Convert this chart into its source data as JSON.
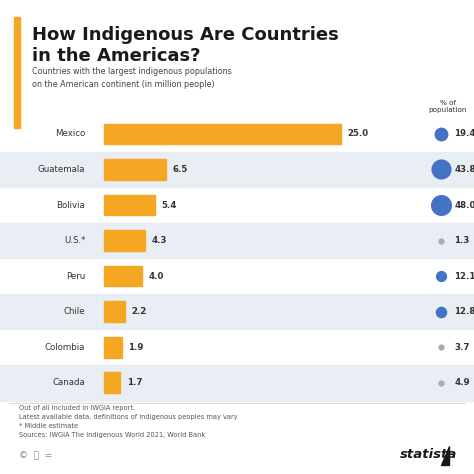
{
  "title_line1": "How Indigenous Are Countries",
  "title_line2": "in the Americas?",
  "subtitle": "Countries with the largest indigenous populations\non the American continent (in million people)",
  "countries": [
    "Mexico",
    "Guatemala",
    "Bolivia",
    "U.S.*",
    "Peru",
    "Chile",
    "Colombia",
    "Canada"
  ],
  "values": [
    25.0,
    6.5,
    5.4,
    4.3,
    4.0,
    2.2,
    1.9,
    1.7
  ],
  "pct_population": [
    19.4,
    43.8,
    48.0,
    1.3,
    12.1,
    12.8,
    3.7,
    4.9
  ],
  "bar_color": "#F5A623",
  "bg_color": "#FFFFFF",
  "row_alt_color": "#E8EEF4",
  "title_color": "#1A1A1A",
  "subtitle_color": "#444444",
  "bar_label_color": "#333333",
  "dot_color": "#4472C4",
  "accent_bar_color": "#F5A623",
  "footnote": "Out of all included in IWGIA report.\nLatest available data, definitions of indigenous peoples may vary\n* Middle estimate\nSources: IWGIA The Indigenous World 2021, World Bank",
  "pct_header": "% of\npopulation",
  "small_dot_indices": [
    3,
    6,
    7
  ],
  "max_val": 25.0
}
